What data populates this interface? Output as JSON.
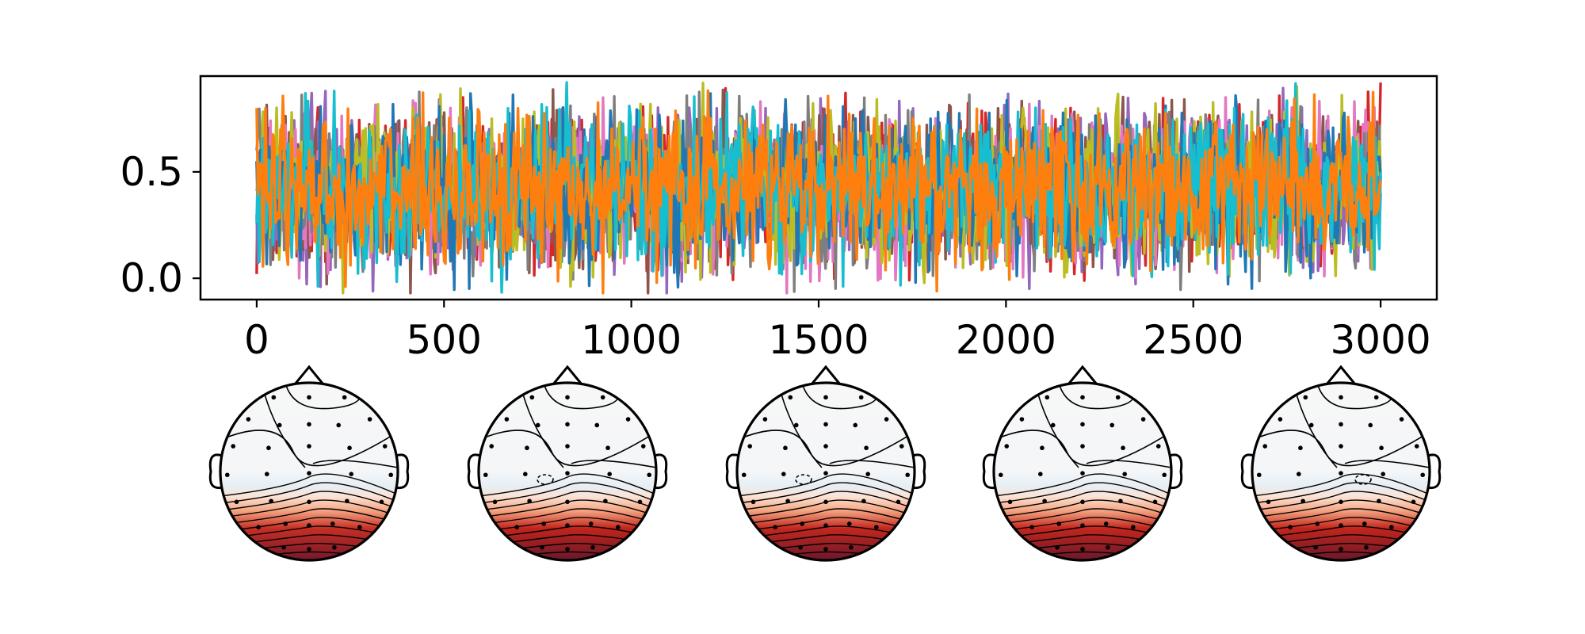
{
  "chart_data": [
    {
      "type": "line",
      "title": "",
      "xlabel": "",
      "ylabel": "",
      "xlim": [
        -150,
        3150
      ],
      "ylim": [
        -0.1,
        0.95
      ],
      "x_ticks": [
        {
          "value": 0,
          "label": "0"
        },
        {
          "value": 500,
          "label": "500"
        },
        {
          "value": 1000,
          "label": "1000"
        },
        {
          "value": 1500,
          "label": "1500"
        },
        {
          "value": 2000,
          "label": "2000"
        },
        {
          "value": 2500,
          "label": "2500"
        },
        {
          "value": 3000,
          "label": "3000"
        }
      ],
      "y_ticks": [
        {
          "value": 0.0,
          "label": "0.0"
        },
        {
          "value": 0.5,
          "label": "0.5"
        }
      ],
      "x_range": [
        0,
        3000
      ],
      "value_range": [
        -0.07,
        0.92
      ],
      "mean_value": 0.42,
      "grid": false,
      "legend": "none",
      "series": [
        {
          "color": "#d62728",
          "values": [
            0.02,
            0.62,
            0.35,
            0.48,
            0.22,
            0.55,
            0.41,
            0.3,
            0.66,
            0.38,
            0.5,
            0.27,
            0.72,
            0.44,
            0.33,
            0.58,
            0.4,
            0.25,
            0.61,
            0.47,
            0.36,
            0.8,
            0.42,
            0.29,
            0.55,
            0.39,
            0.64,
            0.31,
            0.48,
            0.92
          ]
        },
        {
          "color": "#9467bd",
          "values": [
            0.3,
            0.45,
            0.61,
            -0.06,
            0.52,
            0.37,
            0.7,
            0.28,
            0.49,
            0.58,
            0.33,
            0.46,
            0.66,
            0.24,
            0.51,
            0.4,
            0.75,
            0.35,
            0.44,
            0.57,
            0.29,
            0.62,
            0.38,
            0.5,
            0.26,
            0.68,
            0.42,
            0.05,
            0.55,
            0.4
          ]
        },
        {
          "color": "#8c564b",
          "values": [
            0.55,
            0.38,
            0.46,
            0.6,
            0.31,
            0.49,
            0.42,
            0.67,
            0.35,
            0.52,
            0.28,
            0.58,
            0.4,
            0.47,
            0.63,
            0.33,
            0.5,
            0.44,
            0.36,
            0.59,
            0.41,
            0.53,
            0.3,
            0.65,
            0.39,
            0.48,
            0.57,
            0.34,
            0.46,
            0.5
          ]
        },
        {
          "color": "#e377c2",
          "values": [
            0.41,
            0.7,
            0.29,
            0.52,
            0.44,
            0.8,
            0.36,
            0.55,
            0.3,
            0.62,
            0.47,
            0.38,
            0.58,
            0.83,
            0.42,
            0.27,
            0.64,
            0.5,
            0.35,
            0.05,
            0.49,
            0.61,
            0.4,
            0.56,
            0.33,
            0.85,
            0.45,
            0.37,
            0.59,
            0.48
          ]
        },
        {
          "color": "#7f7f7f",
          "values": [
            0.6,
            0.33,
            0.5,
            0.41,
            0.65,
            0.28,
            0.53,
            0.04,
            0.46,
            0.39,
            0.7,
            0.3,
            0.55,
            0.43,
            0.36,
            0.61,
            0.47,
            0.32,
            0.57,
            0.4,
            0.68,
            0.35,
            0.51,
            0.44,
            0.29,
            0.63,
            0.42,
            0.53,
            0.36,
            0.45
          ]
        },
        {
          "color": "#bcbd22",
          "values": [
            0.48,
            0.56,
            0.38,
            0.72,
            0.43,
            0.34,
            0.6,
            0.49,
            0.82,
            0.37,
            0.54,
            0.45,
            0.31,
            0.66,
            0.4,
            0.58,
            0.84,
            0.36,
            0.51,
            0.44,
            0.62,
            0.33,
            0.47,
            0.7,
            0.39,
            0.55,
            0.42,
            0.64,
            0.86,
            0.5
          ]
        },
        {
          "color": "#1f77b4",
          "values": [
            0.55,
            0.29,
            0.62,
            0.4,
            0.5,
            0.08,
            0.45,
            0.68,
            0.33,
            0.57,
            0.42,
            0.74,
            0.3,
            0.52,
            0.46,
            0.36,
            0.63,
            -0.02,
            0.48,
            0.41,
            0.59,
            0.35,
            0.66,
            0.44,
            0.53,
            0.31,
            0.6,
            0.38,
            0.49,
            0.47
          ]
        },
        {
          "color": "#17becf",
          "values": [
            0.26,
            0.52,
            0.88,
            0.37,
            0.6,
            0.45,
            0.33,
            0.55,
            0.92,
            0.41,
            0.64,
            0.36,
            0.5,
            0.43,
            0.69,
            0.31,
            0.56,
            0.46,
            0.62,
            0.38,
            0.53,
            0.75,
            0.4,
            0.58,
            0.34,
            0.6,
            0.48,
            0.7,
            0.42,
            0.5
          ]
        },
        {
          "color": "#ff7f0e",
          "values": [
            0.8,
            0.4,
            0.48,
            0.35,
            0.52,
            0.44,
            0.58,
            0.38,
            0.46,
            0.55,
            0.41,
            0.49,
            0.36,
            0.57,
            0.43,
            0.5,
            0.39,
            0.47,
            0.54,
            0.42,
            0.6,
            0.37,
            0.51,
            0.45,
            0.4,
            0.56,
            0.44,
            0.38,
            0.52,
            0.46
          ]
        }
      ]
    },
    {
      "type": "heatmap",
      "title": "",
      "description_kind": "topomap",
      "colormap": "RdBu_r",
      "contour_lines": true,
      "sensors_shown": true,
      "maps": [
        {
          "hot_region": "posterior",
          "intensity": 0.82,
          "negative_spot": false
        },
        {
          "hot_region": "posterior",
          "intensity": 1.0,
          "negative_spot": true
        },
        {
          "hot_region": "posterior",
          "intensity": 0.95,
          "negative_spot": true
        },
        {
          "hot_region": "posterior",
          "intensity": 0.97,
          "negative_spot": false
        },
        {
          "hot_region": "posterior",
          "intensity": 0.98,
          "negative_spot": true
        }
      ]
    }
  ]
}
